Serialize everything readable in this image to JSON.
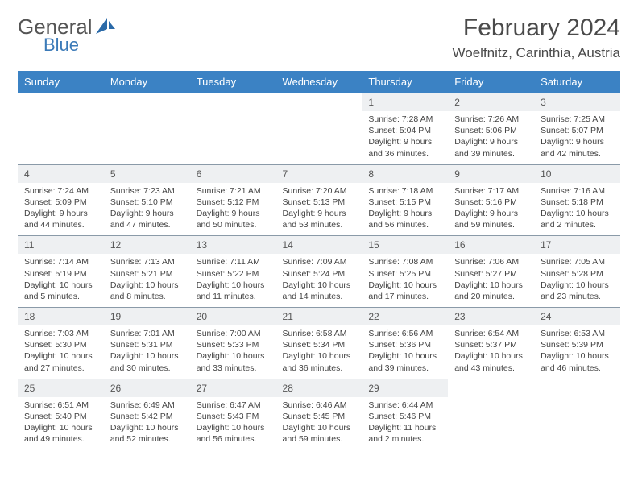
{
  "logo": {
    "text1": "General",
    "text2": "Blue",
    "sail_color": "#2b6aa8"
  },
  "title": "February 2024",
  "location": "Woelfnitz, Carinthia, Austria",
  "colors": {
    "header_bg": "#3b82c4",
    "header_text": "#ffffff",
    "daynum_bg": "#eef0f2",
    "border": "#8a9aa8",
    "body_text": "#444444"
  },
  "weekdays": [
    "Sunday",
    "Monday",
    "Tuesday",
    "Wednesday",
    "Thursday",
    "Friday",
    "Saturday"
  ],
  "weeks": [
    [
      {
        "empty": true
      },
      {
        "empty": true
      },
      {
        "empty": true
      },
      {
        "empty": true
      },
      {
        "n": "1",
        "sr": "7:28 AM",
        "ss": "5:04 PM",
        "dl": "9 hours and 36 minutes."
      },
      {
        "n": "2",
        "sr": "7:26 AM",
        "ss": "5:06 PM",
        "dl": "9 hours and 39 minutes."
      },
      {
        "n": "3",
        "sr": "7:25 AM",
        "ss": "5:07 PM",
        "dl": "9 hours and 42 minutes."
      }
    ],
    [
      {
        "n": "4",
        "sr": "7:24 AM",
        "ss": "5:09 PM",
        "dl": "9 hours and 44 minutes."
      },
      {
        "n": "5",
        "sr": "7:23 AM",
        "ss": "5:10 PM",
        "dl": "9 hours and 47 minutes."
      },
      {
        "n": "6",
        "sr": "7:21 AM",
        "ss": "5:12 PM",
        "dl": "9 hours and 50 minutes."
      },
      {
        "n": "7",
        "sr": "7:20 AM",
        "ss": "5:13 PM",
        "dl": "9 hours and 53 minutes."
      },
      {
        "n": "8",
        "sr": "7:18 AM",
        "ss": "5:15 PM",
        "dl": "9 hours and 56 minutes."
      },
      {
        "n": "9",
        "sr": "7:17 AM",
        "ss": "5:16 PM",
        "dl": "9 hours and 59 minutes."
      },
      {
        "n": "10",
        "sr": "7:16 AM",
        "ss": "5:18 PM",
        "dl": "10 hours and 2 minutes."
      }
    ],
    [
      {
        "n": "11",
        "sr": "7:14 AM",
        "ss": "5:19 PM",
        "dl": "10 hours and 5 minutes."
      },
      {
        "n": "12",
        "sr": "7:13 AM",
        "ss": "5:21 PM",
        "dl": "10 hours and 8 minutes."
      },
      {
        "n": "13",
        "sr": "7:11 AM",
        "ss": "5:22 PM",
        "dl": "10 hours and 11 minutes."
      },
      {
        "n": "14",
        "sr": "7:09 AM",
        "ss": "5:24 PM",
        "dl": "10 hours and 14 minutes."
      },
      {
        "n": "15",
        "sr": "7:08 AM",
        "ss": "5:25 PM",
        "dl": "10 hours and 17 minutes."
      },
      {
        "n": "16",
        "sr": "7:06 AM",
        "ss": "5:27 PM",
        "dl": "10 hours and 20 minutes."
      },
      {
        "n": "17",
        "sr": "7:05 AM",
        "ss": "5:28 PM",
        "dl": "10 hours and 23 minutes."
      }
    ],
    [
      {
        "n": "18",
        "sr": "7:03 AM",
        "ss": "5:30 PM",
        "dl": "10 hours and 27 minutes."
      },
      {
        "n": "19",
        "sr": "7:01 AM",
        "ss": "5:31 PM",
        "dl": "10 hours and 30 minutes."
      },
      {
        "n": "20",
        "sr": "7:00 AM",
        "ss": "5:33 PM",
        "dl": "10 hours and 33 minutes."
      },
      {
        "n": "21",
        "sr": "6:58 AM",
        "ss": "5:34 PM",
        "dl": "10 hours and 36 minutes."
      },
      {
        "n": "22",
        "sr": "6:56 AM",
        "ss": "5:36 PM",
        "dl": "10 hours and 39 minutes."
      },
      {
        "n": "23",
        "sr": "6:54 AM",
        "ss": "5:37 PM",
        "dl": "10 hours and 43 minutes."
      },
      {
        "n": "24",
        "sr": "6:53 AM",
        "ss": "5:39 PM",
        "dl": "10 hours and 46 minutes."
      }
    ],
    [
      {
        "n": "25",
        "sr": "6:51 AM",
        "ss": "5:40 PM",
        "dl": "10 hours and 49 minutes."
      },
      {
        "n": "26",
        "sr": "6:49 AM",
        "ss": "5:42 PM",
        "dl": "10 hours and 52 minutes."
      },
      {
        "n": "27",
        "sr": "6:47 AM",
        "ss": "5:43 PM",
        "dl": "10 hours and 56 minutes."
      },
      {
        "n": "28",
        "sr": "6:46 AM",
        "ss": "5:45 PM",
        "dl": "10 hours and 59 minutes."
      },
      {
        "n": "29",
        "sr": "6:44 AM",
        "ss": "5:46 PM",
        "dl": "11 hours and 2 minutes."
      },
      {
        "empty": true
      },
      {
        "empty": true
      }
    ]
  ],
  "labels": {
    "sunrise": "Sunrise: ",
    "sunset": "Sunset: ",
    "daylight": "Daylight: "
  }
}
